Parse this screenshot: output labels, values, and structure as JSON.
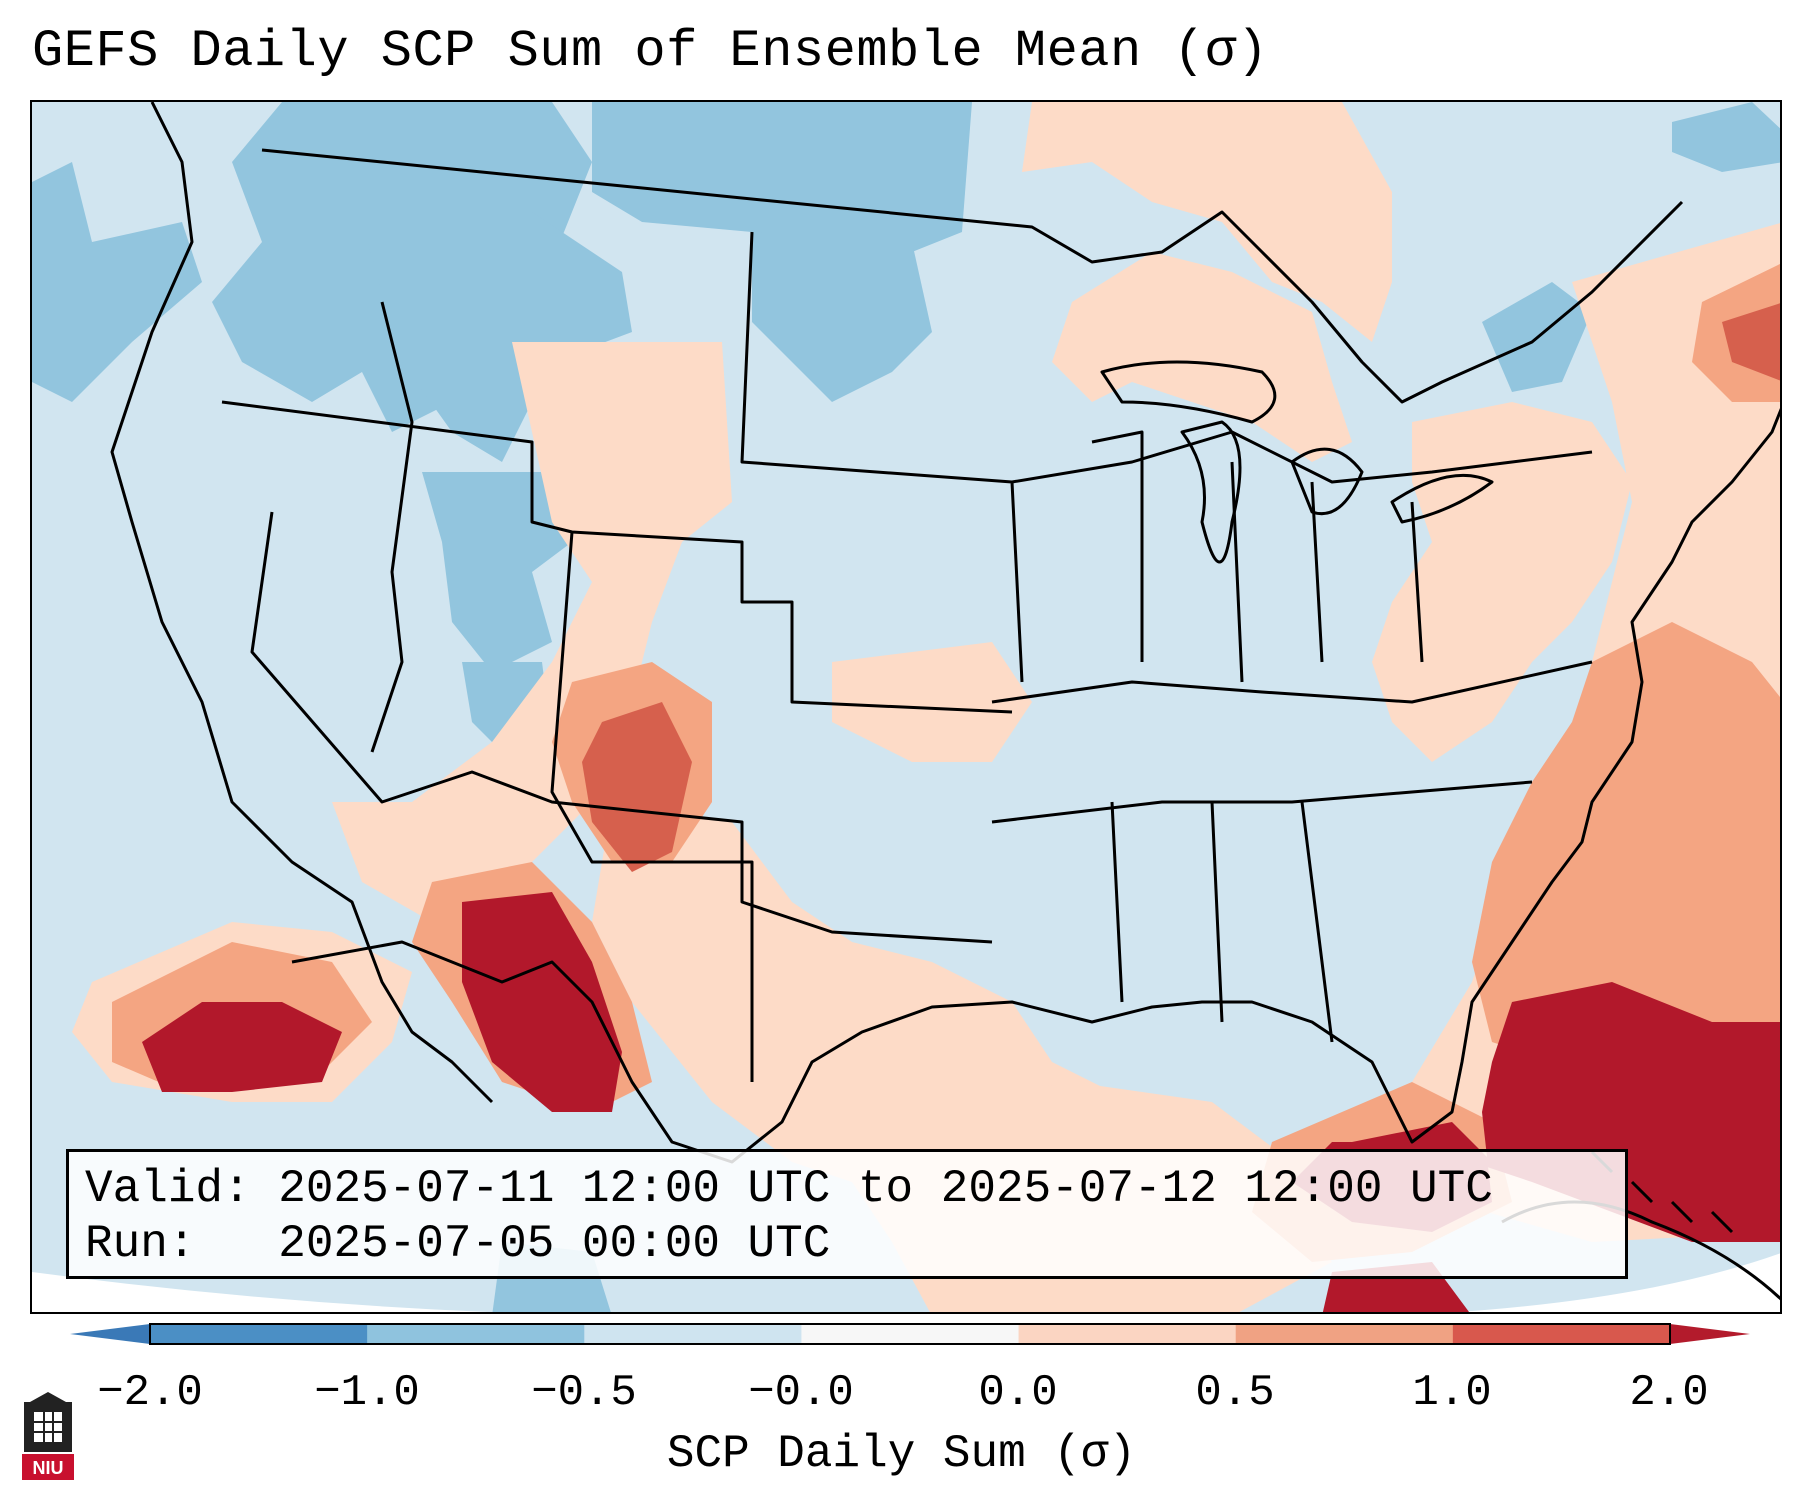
{
  "title": "GEFS Daily SCP Sum of Ensemble Mean (σ)",
  "info": {
    "valid_label": "Valid:",
    "valid_value": "2025-07-11 12:00 UTC to 2025-07-12 12:00 UTC",
    "run_label": "Run:",
    "run_value": "2025-07-05 00:00 UTC"
  },
  "colorbar": {
    "title": "SCP Daily Sum (σ)",
    "ticks": [
      "−2.0",
      "−1.0",
      "−0.5",
      "−0.0",
      "0.0",
      "0.5",
      "1.0",
      "2.0"
    ],
    "colors": [
      "#4b8fc5",
      "#8fc3de",
      "#cfe4f0",
      "#f7f7f7",
      "#fbd5c2",
      "#f0a283",
      "#d8584d"
    ],
    "under_color": "#3a79b7",
    "over_color": "#b31b2c"
  },
  "map": {
    "background_color": "#d1e5f0",
    "region": "Continental United States",
    "fields": [
      {
        "name": "negative-northern-rockies",
        "level": "-1.0 to -0.5",
        "color": "#92c5de"
      },
      {
        "name": "positive-southwest-mexico",
        "level": "1.0 to 2.0",
        "color": "#b2182b"
      },
      {
        "name": "positive-gulf-atlantic",
        "level": "1.0 to 2.0",
        "color": "#b2182b"
      },
      {
        "name": "moderate-atlantic",
        "level": "0.5 to 1.0",
        "color": "#f4a582"
      },
      {
        "name": "light-positive-east",
        "level": "0.0 to 0.5",
        "color": "#fddbc7"
      }
    ]
  },
  "logo": {
    "text": "NIU",
    "color": "#c8102e"
  }
}
